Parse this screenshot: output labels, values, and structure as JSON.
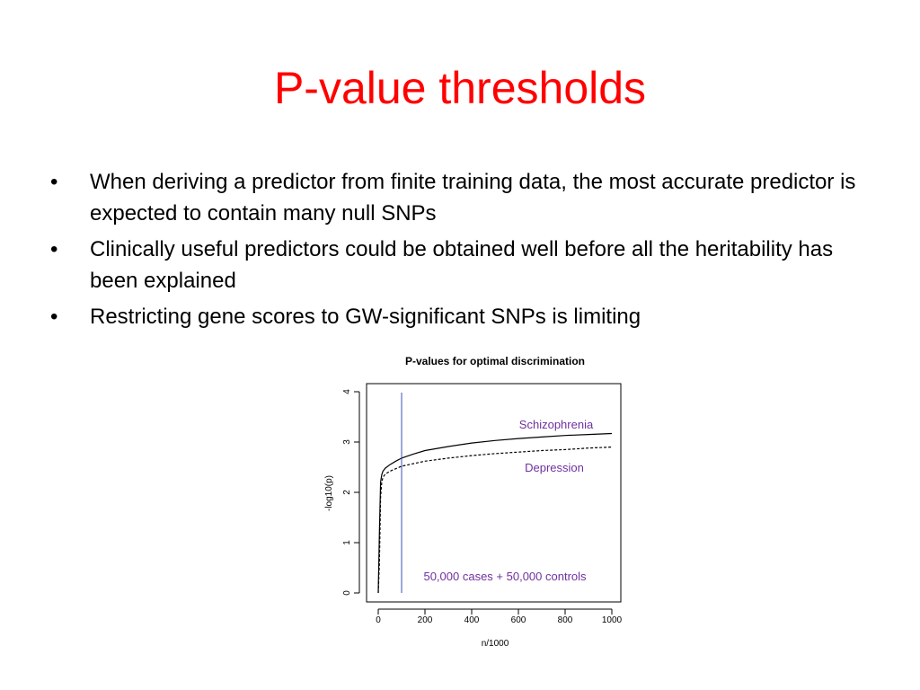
{
  "slide": {
    "title": "P-value thresholds",
    "bullets": [
      {
        "marker": "•",
        "text": "When deriving a predictor from finite training data, the most accurate predictor is expected to contain many null SNPs"
      },
      {
        "marker": "•",
        "text": "Clinically useful predictors could be obtained well before all the heritability has been explained"
      },
      {
        "marker": "•",
        "text": "Restricting gene scores to GW-significant SNPs is limiting"
      }
    ]
  },
  "chart_data": {
    "type": "line",
    "title": "P-values for optimal discrimination",
    "xlabel": "n/1000",
    "ylabel": "-log10(p)",
    "xlim": [
      0,
      1000
    ],
    "ylim": [
      0,
      4
    ],
    "xticks": [
      0,
      200,
      400,
      600,
      800,
      1000
    ],
    "yticks": [
      0,
      1,
      2,
      3,
      4
    ],
    "grid": false,
    "series": [
      {
        "name": "Schizophrenia",
        "style": "solid",
        "x": [
          0,
          5,
          10,
          15,
          20,
          30,
          50,
          75,
          100,
          150,
          200,
          300,
          400,
          500,
          600,
          700,
          800,
          900,
          1000
        ],
        "y": [
          0.0,
          1.2,
          2.2,
          2.35,
          2.42,
          2.48,
          2.55,
          2.62,
          2.68,
          2.76,
          2.83,
          2.91,
          2.98,
          3.03,
          3.07,
          3.1,
          3.13,
          3.15,
          3.17
        ]
      },
      {
        "name": "Depression",
        "style": "dashed",
        "x": [
          0,
          5,
          10,
          15,
          20,
          30,
          50,
          75,
          100,
          150,
          200,
          300,
          400,
          500,
          600,
          700,
          800,
          900,
          1000
        ],
        "y": [
          0.0,
          0.6,
          1.9,
          2.2,
          2.3,
          2.36,
          2.42,
          2.47,
          2.52,
          2.57,
          2.62,
          2.68,
          2.73,
          2.77,
          2.8,
          2.83,
          2.85,
          2.88,
          2.9
        ]
      }
    ],
    "threshold_line": {
      "x": 100,
      "color": "#3f4fb5"
    },
    "annotations": {
      "schizophrenia": "Schizophrenia",
      "depression": "Depression",
      "sample": "50,000 cases + 50,000 controls"
    },
    "colors": {
      "annotation": "#7030a0",
      "line": "#000000"
    }
  }
}
